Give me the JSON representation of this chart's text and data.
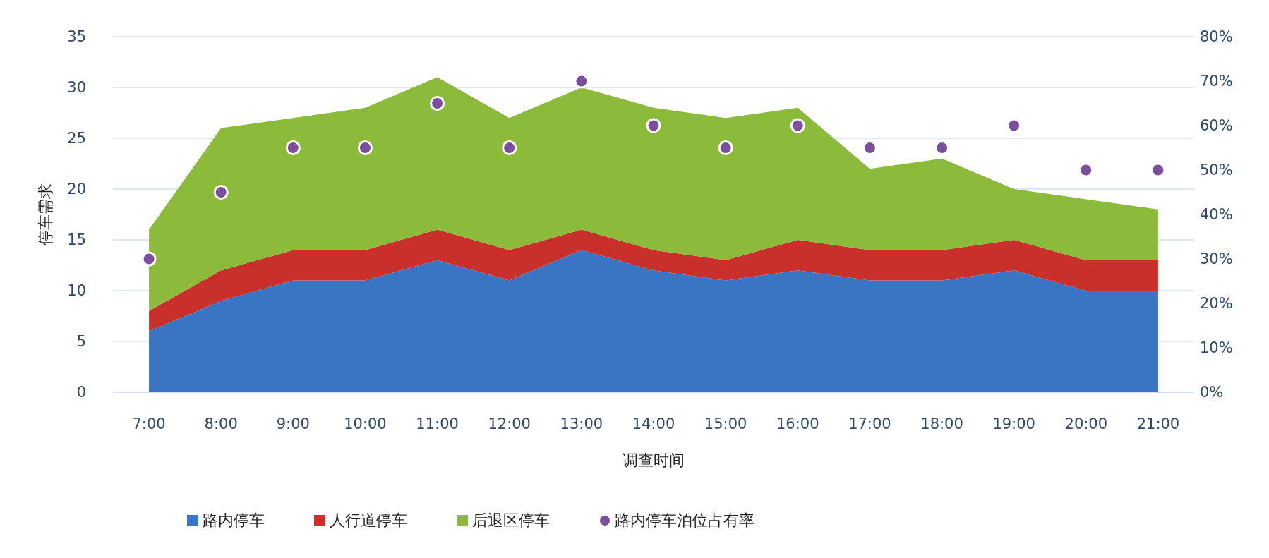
{
  "chart_data": {
    "type": "area",
    "stacked": true,
    "xlabel": "调查时间",
    "ylabel": "停车需求",
    "categories": [
      "7:00",
      "8:00",
      "9:00",
      "10:00",
      "11:00",
      "12:00",
      "13:00",
      "14:00",
      "15:00",
      "16:00",
      "17:00",
      "18:00",
      "19:00",
      "20:00",
      "21:00"
    ],
    "series": [
      {
        "name": "路内停车",
        "color": "#3a75c4",
        "values": [
          6,
          9,
          11,
          11,
          13,
          11,
          14,
          12,
          11,
          12,
          11,
          11,
          12,
          10,
          10
        ]
      },
      {
        "name": "人行道停车",
        "color": "#c9302c",
        "values": [
          2,
          3,
          3,
          3,
          3,
          3,
          2,
          2,
          2,
          3,
          3,
          3,
          3,
          3,
          3
        ]
      },
      {
        "name": "后退区停车",
        "color": "#8cbb3c",
        "values": [
          8,
          14,
          13,
          14,
          15,
          13,
          14,
          14,
          14,
          13,
          8,
          9,
          5,
          6,
          5
        ]
      },
      {
        "name": "路内停车泊位占有率",
        "type": "scatter",
        "axis": "y2",
        "marker": "circle",
        "color": "#7b4f9d",
        "values": [
          30,
          45,
          55,
          55,
          65,
          55,
          70,
          60,
          55,
          60,
          55,
          55,
          60,
          50,
          50
        ]
      }
    ],
    "ylim": [
      0,
      35
    ],
    "yticks": [
      0,
      5,
      10,
      15,
      20,
      25,
      30,
      35
    ],
    "y2lim": [
      0,
      80
    ],
    "y2ticks": [
      {
        "value": 0,
        "label": "0%"
      },
      {
        "value": 10,
        "label": "10%"
      },
      {
        "value": 20,
        "label": "20%"
      },
      {
        "value": 30,
        "label": "30%"
      },
      {
        "value": 40,
        "label": "40%"
      },
      {
        "value": 50,
        "label": "50%"
      },
      {
        "value": 60,
        "label": "60%"
      },
      {
        "value": 70,
        "label": "70%"
      },
      {
        "value": 80,
        "label": "80%"
      }
    ],
    "grid": "y",
    "legend": "bottom"
  }
}
